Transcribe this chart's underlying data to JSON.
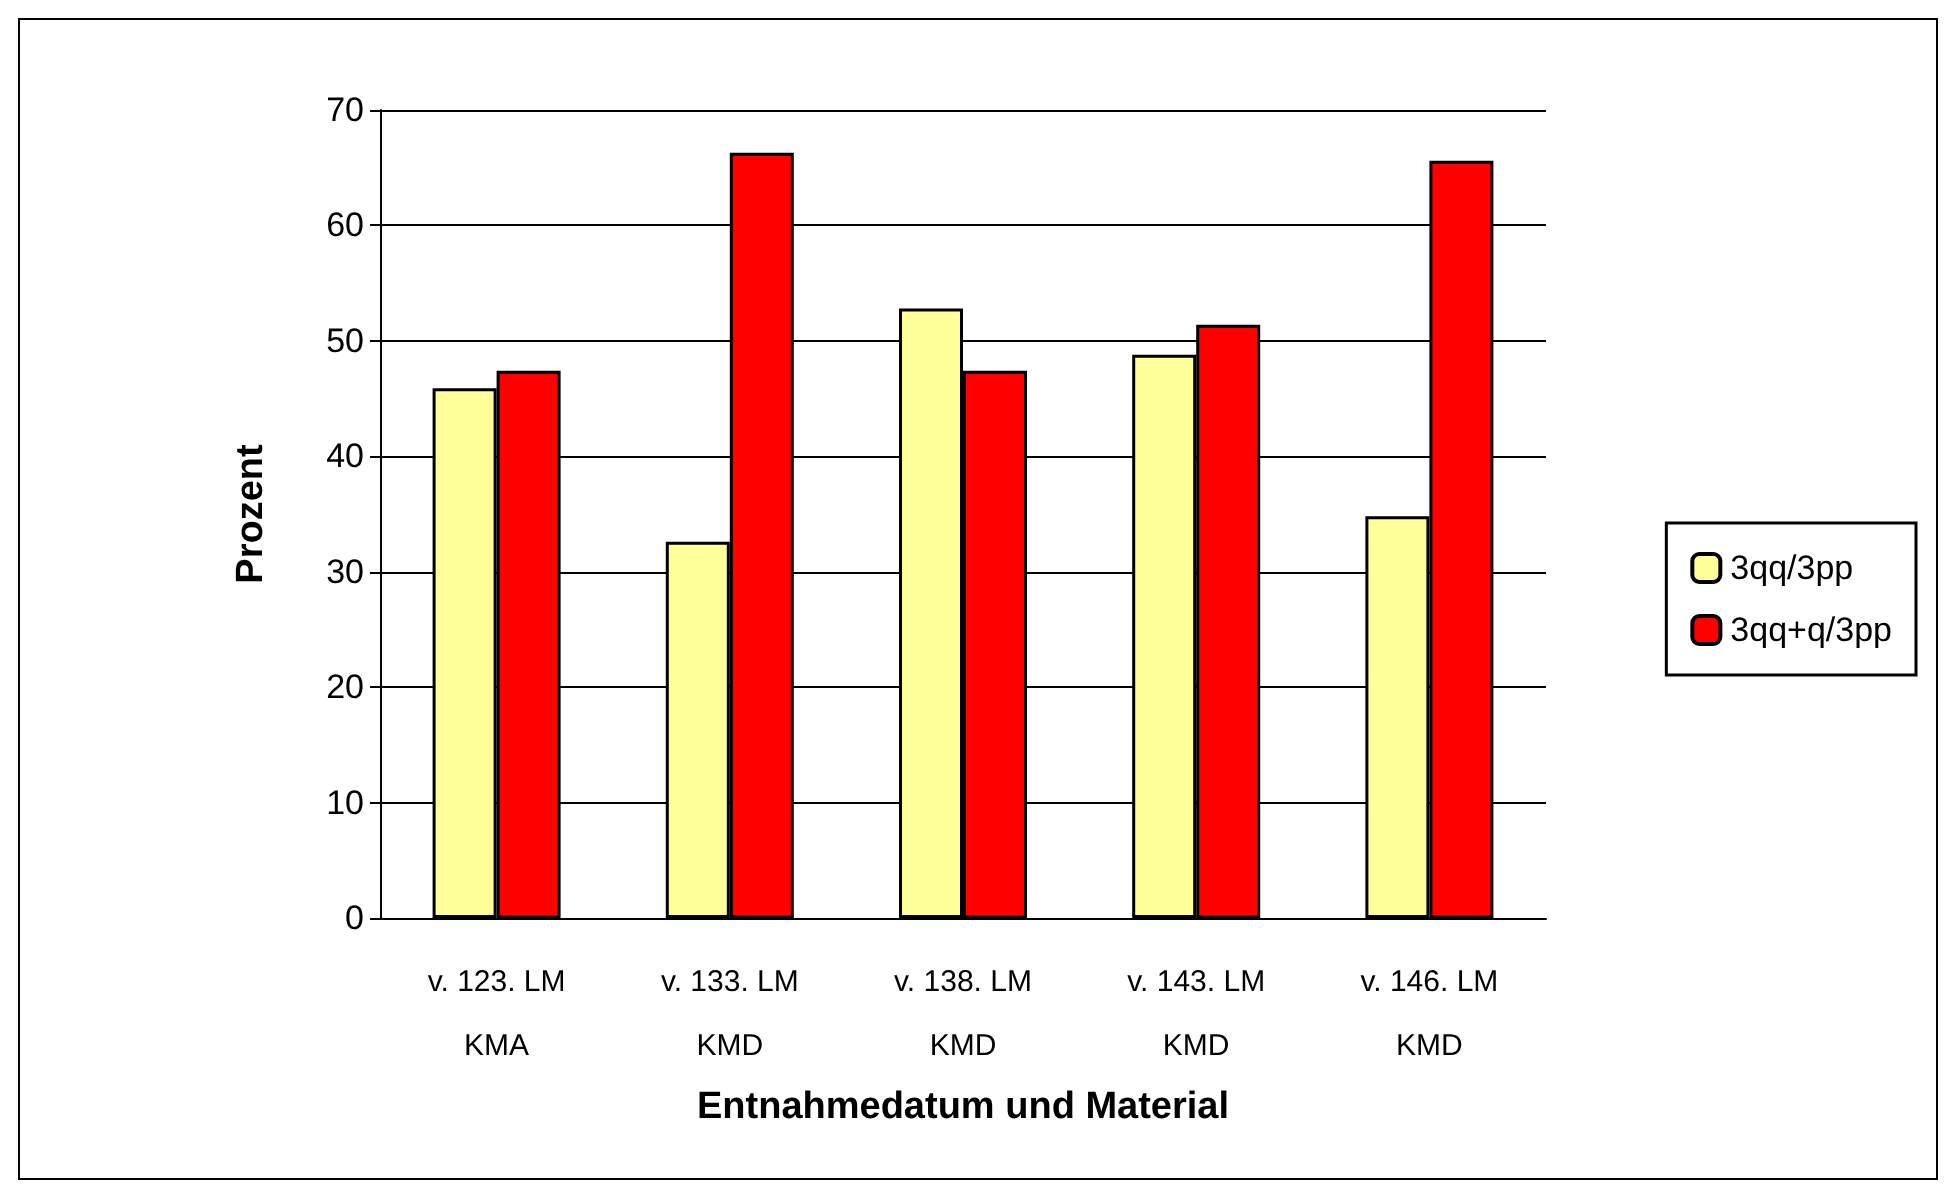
{
  "chart_data": {
    "type": "bar",
    "xlabel": "Entnahmedatum und Material",
    "ylabel": "Prozent",
    "categories": [
      "v. 123. LM\nKMA",
      "v. 133. LM\nKMD",
      "v. 138. LM\nKMD",
      "v. 143. LM\nKMD",
      "v. 146. LM\nKMD"
    ],
    "series": [
      {
        "name": "3qq/3pp",
        "color": "#ffff99",
        "values": [
          45.9,
          32.6,
          52.8,
          48.8,
          34.8
        ]
      },
      {
        "name": "3qq+q/3pp",
        "color": "#ff0000",
        "values": [
          47.4,
          66.3,
          47.4,
          51.4,
          65.6
        ]
      }
    ],
    "ylim": [
      0,
      70
    ],
    "yticks": [
      0,
      10,
      20,
      30,
      40,
      50,
      60,
      70
    ],
    "grid": "y",
    "legend": "right"
  }
}
